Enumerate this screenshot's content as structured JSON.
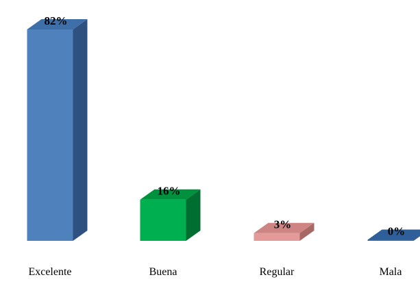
{
  "chart_data": {
    "type": "bar",
    "style": "3d-column",
    "title": "",
    "xlabel": "",
    "ylabel": "",
    "categories": [
      "Excelente",
      "Buena",
      "Regular",
      "Mala"
    ],
    "values": [
      82,
      16,
      3,
      0
    ],
    "data_labels": [
      "82%",
      "16%",
      "3%",
      "0%"
    ],
    "ylim": [
      0,
      82
    ],
    "grid": false,
    "legend": "none",
    "colors": [
      {
        "front": "#4F81BD",
        "top": "#3F6FA8",
        "side": "#2F5180"
      },
      {
        "front": "#00B050",
        "top": "#00913F",
        "side": "#006E30"
      },
      {
        "front": "#E39A98",
        "top": "#CC8583",
        "side": "#A86866"
      },
      {
        "front": "#3F6FA8",
        "top": "#2F5F98",
        "side": "#244C7C"
      }
    ]
  }
}
